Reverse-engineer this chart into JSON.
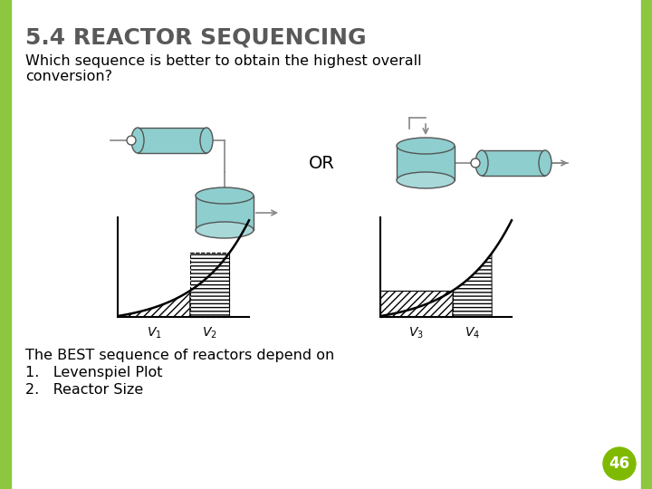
{
  "title": "5.4 REACTOR SEQUENCING",
  "subtitle": "Which sequence is better to obtain the highest overall\nconversion?",
  "bottom_text_line1": "The BEST sequence of reactors depend on",
  "bottom_text_line2": "1.   Levenspiel Plot",
  "bottom_text_line3": "2.   Reactor Size",
  "page_number": "46",
  "background_color": "#ffffff",
  "border_color": "#8dc63f",
  "title_color": "#595959",
  "text_color": "#000000",
  "reactor_color": "#8ecece",
  "reactor_edge": "#555555",
  "page_num_bg": "#7fba00",
  "page_num_color": "#ffffff",
  "OR_text": "OR",
  "fig_width": 7.2,
  "fig_height": 5.4,
  "dpi": 100
}
